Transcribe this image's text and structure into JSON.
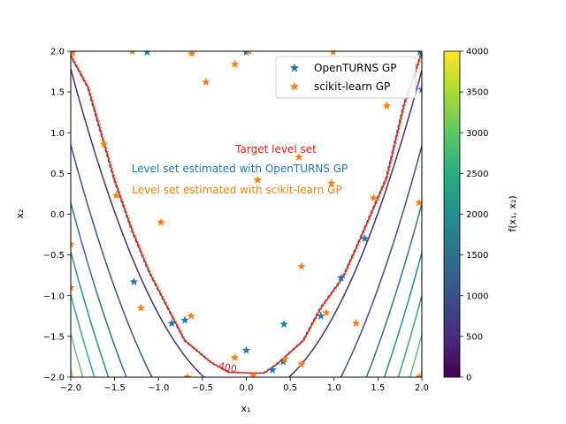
{
  "chart_data": {
    "type": "contour",
    "xlabel": "x₁",
    "ylabel": "x₂",
    "colorbar_label": "f(x₁, x₂)",
    "xlim": [
      -2,
      2
    ],
    "ylim": [
      -2,
      2
    ],
    "x_ticks": [
      "−2.0",
      "−1.5",
      "−1.0",
      "−0.5",
      "0.0",
      "0.5",
      "1.0",
      "1.5",
      "2.0"
    ],
    "y_ticks": [
      "−2.0",
      "−1.5",
      "−1.0",
      "−0.5",
      "0.0",
      "0.5",
      "1.0",
      "1.5",
      "2.0"
    ],
    "colorbar_ticks": [
      0,
      500,
      1000,
      1500,
      2000,
      2500,
      3000,
      3500,
      4000
    ],
    "contour_levels": [
      {
        "level": 500,
        "color": "#472c7a"
      },
      {
        "level": 1000,
        "color": "#3b518b"
      },
      {
        "level": 1500,
        "color": "#2c718e"
      },
      {
        "level": 2000,
        "color": "#21908d"
      },
      {
        "level": 2500,
        "color": "#27ad81"
      },
      {
        "level": 3000,
        "color": "#5cc863"
      },
      {
        "level": 3500,
        "color": "#aadc32"
      },
      {
        "level": 4000,
        "color": "#fde725"
      }
    ],
    "level_set_label": "400",
    "level_set_values": [
      [
        -2.0,
        1.95
      ],
      [
        -1.8,
        1.55
      ],
      [
        -1.5,
        0.42
      ],
      [
        -1.3,
        -0.2
      ],
      [
        -1.1,
        -0.72
      ],
      [
        -0.7,
        -1.55
      ],
      [
        -0.4,
        -1.82
      ],
      [
        -0.2,
        -1.94
      ],
      [
        0.1,
        -1.95
      ],
      [
        0.2,
        -1.95
      ],
      [
        0.35,
        -1.84
      ],
      [
        0.65,
        -1.55
      ],
      [
        0.85,
        -1.15
      ],
      [
        1.1,
        -0.78
      ],
      [
        1.3,
        -0.3
      ],
      [
        1.6,
        0.45
      ],
      [
        1.8,
        1.35
      ],
      [
        2.0,
        1.98
      ]
    ],
    "annotations": [
      {
        "text": "Target level set",
        "color": "#e41a1c"
      },
      {
        "text": "Level set estimated with OpenTURNS GP",
        "color": "#1f77b4"
      },
      {
        "text": "Level set estimated with scikit-learn GP",
        "color": "#ff7f0e"
      }
    ],
    "legend": [
      {
        "name": "OpenTURNS GP",
        "color": "#1f77b4"
      },
      {
        "name": "scikit-learn GP",
        "color": "#ff7f0e"
      }
    ],
    "legend_position": "top-right",
    "series": [
      {
        "name": "OpenTURNS GP",
        "marker": "star",
        "color": "#1f77b4",
        "points": [
          [
            -1.13,
            1.99
          ],
          [
            0.0,
            1.99
          ],
          [
            1.98,
            1.99
          ],
          [
            2.0,
            1.53
          ],
          [
            -1.28,
            -0.83
          ],
          [
            -0.85,
            -1.34
          ],
          [
            -0.7,
            -1.3
          ],
          [
            0.0,
            -1.67
          ],
          [
            0.3,
            -1.91
          ],
          [
            0.42,
            -1.81
          ],
          [
            0.43,
            -1.35
          ],
          [
            0.85,
            -1.25
          ],
          [
            1.08,
            -0.78
          ],
          [
            1.35,
            -0.3
          ]
        ]
      },
      {
        "name": "scikit-learn GP",
        "marker": "star",
        "color": "#ff7f0e",
        "points": [
          [
            -1.98,
            1.98
          ],
          [
            -1.3,
            2.0
          ],
          [
            -0.62,
            1.97
          ],
          [
            -0.46,
            1.62
          ],
          [
            -0.13,
            1.84
          ],
          [
            0.03,
            2.0
          ],
          [
            0.99,
            1.99
          ],
          [
            1.6,
            1.33
          ],
          [
            -1.62,
            0.86
          ],
          [
            -1.48,
            0.23
          ],
          [
            0.13,
            0.42
          ],
          [
            0.6,
            0.7
          ],
          [
            0.97,
            0.38
          ],
          [
            1.45,
            0.2
          ],
          [
            1.97,
            0.14
          ],
          [
            -2.0,
            -0.37
          ],
          [
            -2.0,
            -0.9
          ],
          [
            -0.97,
            -0.1
          ],
          [
            -1.2,
            -1.15
          ],
          [
            0.63,
            -0.64
          ],
          [
            0.91,
            -1.21
          ],
          [
            1.25,
            -1.34
          ],
          [
            -0.63,
            -1.25
          ],
          [
            -0.67,
            -2.0
          ],
          [
            -0.13,
            -1.76
          ],
          [
            0.08,
            -1.98
          ],
          [
            0.44,
            -1.78
          ],
          [
            0.63,
            -1.84
          ],
          [
            1.97,
            -2.0
          ]
        ]
      }
    ]
  }
}
